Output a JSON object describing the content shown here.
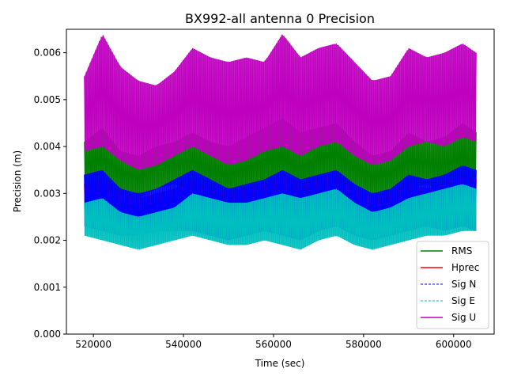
{
  "chart_data": {
    "type": "line",
    "title": "BX992-all antenna 0 Precision",
    "xlabel": "Time (sec)",
    "ylabel": "Precision (m)",
    "xlim": [
      514000,
      609000
    ],
    "ylim": [
      0,
      0.0065
    ],
    "x_ticks": [
      520000,
      540000,
      560000,
      580000,
      600000
    ],
    "x_tick_labels": [
      "520000",
      "540000",
      "560000",
      "580000",
      "600000"
    ],
    "y_ticks": [
      0,
      0.001,
      0.002,
      0.003,
      0.004,
      0.005,
      0.006
    ],
    "y_tick_labels": [
      "0.000",
      "0.001",
      "0.002",
      "0.003",
      "0.004",
      "0.005",
      "0.006"
    ],
    "grid": false,
    "legend_position": "lower-right",
    "x_range_data": [
      518000,
      605000
    ],
    "series": [
      {
        "name": "RMS",
        "color": "#008000",
        "style": "solid",
        "low_x": [
          518000,
          522000,
          526000,
          530000,
          534000,
          538000,
          542000,
          546000,
          550000,
          554000,
          558000,
          562000,
          566000,
          570000,
          574000,
          578000,
          582000,
          586000,
          590000,
          594000,
          598000,
          602000,
          605000
        ],
        "low": [
          0.0031,
          0.0031,
          0.003,
          0.0029,
          0.0031,
          0.0032,
          0.0031,
          0.0029,
          0.0028,
          0.0029,
          0.003,
          0.0029,
          0.0028,
          0.0031,
          0.0032,
          0.003,
          0.0029,
          0.003,
          0.0031,
          0.0032,
          0.003,
          0.0031,
          0.003
        ],
        "high_x": [
          518000,
          522000,
          526000,
          530000,
          534000,
          538000,
          542000,
          546000,
          550000,
          554000,
          558000,
          562000,
          566000,
          570000,
          574000,
          578000,
          582000,
          586000,
          590000,
          594000,
          598000,
          602000,
          605000
        ],
        "high": [
          0.0041,
          0.0044,
          0.0039,
          0.0038,
          0.004,
          0.0041,
          0.0043,
          0.0041,
          0.004,
          0.0042,
          0.0044,
          0.0046,
          0.0043,
          0.0044,
          0.0045,
          0.0041,
          0.0038,
          0.0039,
          0.0043,
          0.0041,
          0.0042,
          0.0045,
          0.0043
        ]
      },
      {
        "name": "Hprec",
        "color": "#ff0000",
        "style": "solid",
        "low_x": [
          518000,
          522000,
          526000,
          530000,
          534000,
          538000,
          542000,
          546000,
          550000,
          554000,
          558000,
          562000,
          566000,
          570000,
          574000,
          578000,
          582000,
          586000,
          590000,
          594000,
          598000,
          602000,
          605000
        ],
        "low": [
          0.0023,
          0.0022,
          0.0021,
          0.0021,
          0.0022,
          0.0022,
          0.0022,
          0.0021,
          0.002,
          0.0021,
          0.0022,
          0.0021,
          0.002,
          0.0022,
          0.0023,
          0.0021,
          0.002,
          0.0021,
          0.0022,
          0.0023,
          0.0022,
          0.0023,
          0.0022
        ],
        "high_x": [
          518000,
          522000,
          526000,
          530000,
          534000,
          538000,
          542000,
          546000,
          550000,
          554000,
          558000,
          562000,
          566000,
          570000,
          574000,
          578000,
          582000,
          586000,
          590000,
          594000,
          598000,
          602000,
          605000
        ],
        "high": [
          0.0032,
          0.0033,
          0.003,
          0.0029,
          0.003,
          0.0031,
          0.0033,
          0.0031,
          0.003,
          0.0031,
          0.0032,
          0.0034,
          0.0032,
          0.0033,
          0.0034,
          0.0031,
          0.0029,
          0.003,
          0.0032,
          0.0031,
          0.0032,
          0.0034,
          0.0033
        ]
      },
      {
        "name": "Sig N",
        "color": "#0000ff",
        "style": "dashed",
        "low_x": [
          518000,
          522000,
          526000,
          530000,
          534000,
          538000,
          542000,
          546000,
          550000,
          554000,
          558000,
          562000,
          566000,
          570000,
          574000,
          578000,
          582000,
          586000,
          590000,
          594000,
          598000,
          602000,
          605000
        ],
        "low": [
          0.0023,
          0.0022,
          0.0021,
          0.0021,
          0.0022,
          0.0022,
          0.0022,
          0.0021,
          0.002,
          0.0021,
          0.0022,
          0.0021,
          0.002,
          0.0022,
          0.0023,
          0.0021,
          0.002,
          0.0021,
          0.0022,
          0.0023,
          0.0022,
          0.0023,
          0.0022
        ],
        "high_x": [
          518000,
          522000,
          526000,
          530000,
          534000,
          538000,
          542000,
          546000,
          550000,
          554000,
          558000,
          562000,
          566000,
          570000,
          574000,
          578000,
          582000,
          586000,
          590000,
          594000,
          598000,
          602000,
          605000
        ],
        "high": [
          0.0034,
          0.0035,
          0.0031,
          0.003,
          0.0031,
          0.0033,
          0.0035,
          0.0033,
          0.0031,
          0.0032,
          0.0033,
          0.0035,
          0.0033,
          0.0034,
          0.0035,
          0.0032,
          0.003,
          0.0031,
          0.0034,
          0.0033,
          0.0034,
          0.0036,
          0.0035
        ]
      },
      {
        "name": "Sig E",
        "color": "#00bfbf",
        "style": "dashed",
        "low_x": [
          518000,
          522000,
          526000,
          530000,
          534000,
          538000,
          542000,
          546000,
          550000,
          554000,
          558000,
          562000,
          566000,
          570000,
          574000,
          578000,
          582000,
          586000,
          590000,
          594000,
          598000,
          602000,
          605000
        ],
        "low": [
          0.0021,
          0.002,
          0.0019,
          0.0018,
          0.0019,
          0.002,
          0.0021,
          0.002,
          0.0019,
          0.0019,
          0.002,
          0.0019,
          0.0018,
          0.002,
          0.0021,
          0.0019,
          0.0018,
          0.0019,
          0.002,
          0.0021,
          0.0021,
          0.0022,
          0.0022
        ],
        "high_x": [
          518000,
          522000,
          526000,
          530000,
          534000,
          538000,
          542000,
          546000,
          550000,
          554000,
          558000,
          562000,
          566000,
          570000,
          574000,
          578000,
          582000,
          586000,
          590000,
          594000,
          598000,
          602000,
          605000
        ],
        "high": [
          0.0028,
          0.0029,
          0.0026,
          0.0025,
          0.0026,
          0.0027,
          0.003,
          0.0029,
          0.0028,
          0.0028,
          0.0029,
          0.003,
          0.0029,
          0.003,
          0.0031,
          0.0028,
          0.0026,
          0.0027,
          0.0029,
          0.003,
          0.0031,
          0.0032,
          0.0031
        ]
      },
      {
        "name": "Sig U",
        "color": "#bf00bf",
        "style": "solid",
        "low_x": [
          518000,
          522000,
          526000,
          530000,
          534000,
          538000,
          542000,
          546000,
          550000,
          554000,
          558000,
          562000,
          566000,
          570000,
          574000,
          578000,
          582000,
          586000,
          590000,
          594000,
          598000,
          602000,
          605000
        ],
        "low": [
          0.0039,
          0.004,
          0.0037,
          0.0035,
          0.0036,
          0.0038,
          0.004,
          0.0038,
          0.0036,
          0.0037,
          0.0039,
          0.004,
          0.0038,
          0.004,
          0.0041,
          0.0038,
          0.0036,
          0.0037,
          0.004,
          0.0041,
          0.004,
          0.0042,
          0.0041
        ],
        "high_x": [
          518000,
          522000,
          526000,
          530000,
          534000,
          538000,
          542000,
          546000,
          550000,
          554000,
          558000,
          562000,
          566000,
          570000,
          574000,
          578000,
          582000,
          586000,
          590000,
          594000,
          598000,
          602000,
          605000
        ],
        "high": [
          0.0055,
          0.0064,
          0.0057,
          0.0054,
          0.0053,
          0.0056,
          0.0061,
          0.0059,
          0.0058,
          0.0059,
          0.0058,
          0.0064,
          0.0059,
          0.0061,
          0.0062,
          0.0058,
          0.0054,
          0.0055,
          0.0061,
          0.0059,
          0.006,
          0.0062,
          0.006
        ]
      }
    ]
  }
}
